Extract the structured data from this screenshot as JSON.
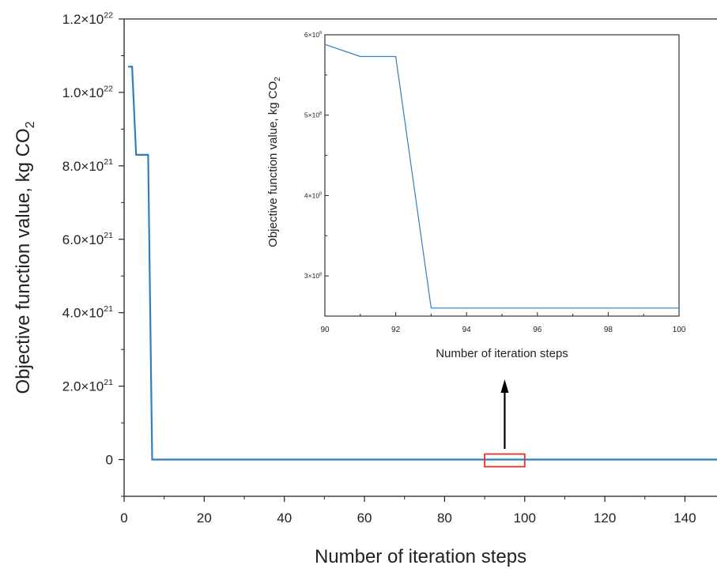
{
  "chart_data": [
    {
      "id": "main",
      "type": "line",
      "xlabel": "Number of iteration steps",
      "ylabel": "Objective function value, kg CO",
      "ylabel_subscript": "2",
      "xlim": [
        0,
        148
      ],
      "ylim": [
        -1e+21,
        1.2e+22
      ],
      "xticks": [
        0,
        20,
        40,
        60,
        80,
        100,
        120,
        140
      ],
      "xtick_labels": [
        "0",
        "20",
        "40",
        "60",
        "80",
        "100",
        "120",
        "140"
      ],
      "yticks": [
        {
          "value": 0,
          "mantissa": "0",
          "exponent": ""
        },
        {
          "value": 2e+21,
          "mantissa": "2.0×10",
          "exponent": "21"
        },
        {
          "value": 4e+21,
          "mantissa": "4.0×10",
          "exponent": "21"
        },
        {
          "value": 6e+21,
          "mantissa": "6.0×10",
          "exponent": "21"
        },
        {
          "value": 8e+21,
          "mantissa": "8.0×10",
          "exponent": "21"
        },
        {
          "value": 1e+22,
          "mantissa": "1.0×10",
          "exponent": "22"
        },
        {
          "value": 1.2e+22,
          "mantissa": "1.2×10",
          "exponent": "22"
        }
      ],
      "series": [
        {
          "color": "#2f7fc1",
          "x": [
            1,
            2,
            3,
            4,
            5,
            6,
            7,
            8,
            10,
            20,
            40,
            60,
            80,
            90,
            100,
            120,
            140,
            148
          ],
          "y": [
            1.07e+22,
            1.07e+22,
            8.3e+21,
            8.3e+21,
            8.3e+21,
            8.3e+21,
            0,
            0,
            0,
            0,
            0,
            0,
            0,
            0,
            0,
            0,
            0,
            0
          ]
        }
      ],
      "annotation": {
        "type": "rectangle",
        "color": "#e03030",
        "x_range": [
          90,
          100
        ]
      }
    },
    {
      "id": "inset",
      "type": "line",
      "xlabel": "Number of iteration steps",
      "ylabel": "Objective function value, kg CO",
      "ylabel_subscript": "2",
      "xlim": [
        90,
        100
      ],
      "ylim": [
        250000000,
        600000000
      ],
      "xticks": [
        90,
        92,
        94,
        96,
        98,
        100
      ],
      "xtick_labels": [
        "90",
        "92",
        "94",
        "96",
        "98",
        "100"
      ],
      "yticks": [
        {
          "value": 300000000,
          "mantissa": "3×10",
          "exponent": "8"
        },
        {
          "value": 400000000,
          "mantissa": "4×10",
          "exponent": "8"
        },
        {
          "value": 500000000,
          "mantissa": "5×10",
          "exponent": "8"
        },
        {
          "value": 600000000,
          "mantissa": "6×10",
          "exponent": "8"
        }
      ],
      "series": [
        {
          "color": "#2f7fc1",
          "x": [
            90,
            91,
            92,
            93,
            94,
            95,
            96,
            97,
            98,
            99,
            100
          ],
          "y": [
            588000000,
            573000000,
            573000000,
            260000000,
            260000000,
            260000000,
            260000000,
            260000000,
            260000000,
            260000000,
            260000000
          ]
        }
      ]
    }
  ],
  "colors": {
    "axis": "#222222",
    "series": "#2f7fc1",
    "zoom_box": "#e03030",
    "arrow": "#000000"
  }
}
